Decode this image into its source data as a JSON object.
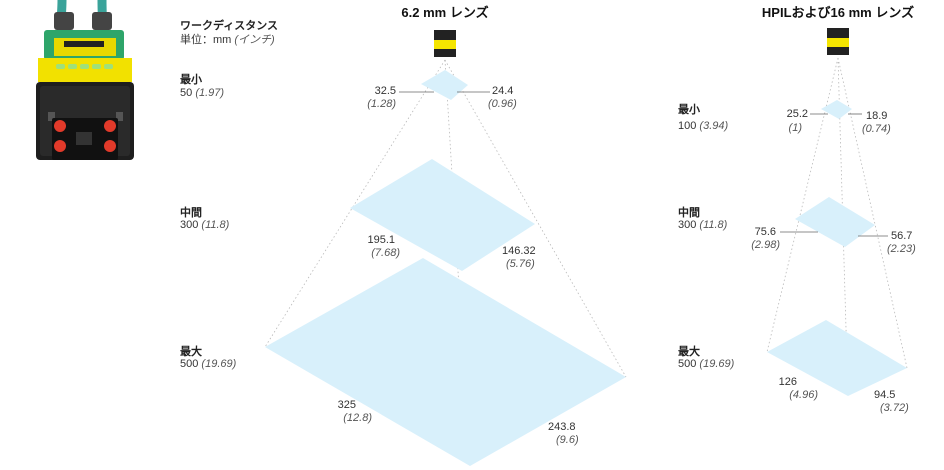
{
  "header": {
    "label": "ワークディスタンス",
    "unit_prefix": "単位：mm ",
    "unit_inch": "(インチ)"
  },
  "lens_a": {
    "title": "6.2 mm レンズ",
    "rows": [
      {
        "name": "最小",
        "mm": "50",
        "in": "(1.97)",
        "w_mm": "32.5",
        "w_in": "(1.28)",
        "h_mm": "24.4",
        "h_in": "(0.96)"
      },
      {
        "name": "中間",
        "mm": "300",
        "in": "(11.8)",
        "w_mm": "195.1",
        "w_in": "(7.68)",
        "h_mm": "146.32",
        "h_in": "(5.76)"
      },
      {
        "name": "最大",
        "mm": "500",
        "in": "(19.69)",
        "w_mm": "325",
        "w_in": "(12.8)",
        "h_mm": "243.8",
        "h_in": "(9.6)"
      }
    ]
  },
  "lens_b": {
    "title": "HPILおよび16 mm レンズ",
    "rows": [
      {
        "name": "最小",
        "mm": "100",
        "in": "(3.94)",
        "w_mm": "25.2",
        "w_in": "(1)",
        "h_mm": "18.9",
        "h_in": "(0.74)"
      },
      {
        "name": "中間",
        "mm": "300",
        "in": "(11.8)",
        "w_mm": "75.6",
        "w_in": "(2.98)",
        "h_mm": "56.7",
        "h_in": "(2.23)"
      },
      {
        "name": "最大",
        "mm": "500",
        "in": "(19.69)",
        "w_mm": "126",
        "w_in": "(4.96)",
        "h_mm": "94.5",
        "h_in": "(3.72)"
      }
    ]
  },
  "colors": {
    "field": "#d8f0fb",
    "sensor_yellow": "#f5e500",
    "sensor_dark": "#222222",
    "cable": "#3aa39a"
  }
}
